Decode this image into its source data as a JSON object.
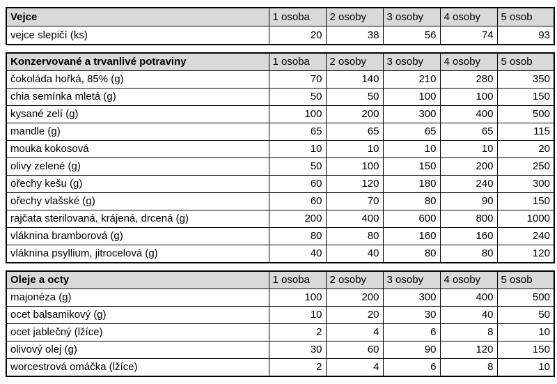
{
  "columns": [
    "1 osoba",
    "2 osoby",
    "3 osoby",
    "4 osoby",
    "5 osob"
  ],
  "colors": {
    "header_bg": "#d9d9d9",
    "border": "#000000",
    "text": "#000000",
    "page_bg": "#ffffff"
  },
  "tables": [
    {
      "title": "Vejce",
      "rows": [
        {
          "label": "vejce slepičí (ks)",
          "values": [
            20,
            38,
            56,
            74,
            93
          ]
        }
      ]
    },
    {
      "title": "Konzervované a trvanlivé potraviny",
      "rows": [
        {
          "label": "čokoláda hořká, 85% (g)",
          "values": [
            70,
            140,
            210,
            280,
            350
          ]
        },
        {
          "label": "chia semínka mletá (g)",
          "values": [
            50,
            50,
            100,
            100,
            150
          ]
        },
        {
          "label": "kysané zelí (g)",
          "values": [
            100,
            200,
            300,
            400,
            500
          ]
        },
        {
          "label": "mandle (g)",
          "values": [
            65,
            65,
            65,
            65,
            115
          ]
        },
        {
          "label": "mouka kokosová",
          "values": [
            10,
            10,
            10,
            10,
            20
          ]
        },
        {
          "label": "olivy zelené (g)",
          "values": [
            50,
            100,
            150,
            200,
            250
          ]
        },
        {
          "label": "ořechy kešu (g)",
          "values": [
            60,
            120,
            180,
            240,
            300
          ]
        },
        {
          "label": "ořechy vlašské (g)",
          "values": [
            60,
            70,
            80,
            90,
            150
          ]
        },
        {
          "label": "rajčata sterilovaná, krájená, drcená (g)",
          "values": [
            200,
            400,
            600,
            800,
            1000
          ]
        },
        {
          "label": "vláknina bramborová (g)",
          "values": [
            80,
            80,
            160,
            160,
            240
          ]
        },
        {
          "label": "vláknina psyllium, jitrocelová (g)",
          "values": [
            40,
            40,
            80,
            80,
            120
          ]
        }
      ]
    },
    {
      "title": "Oleje a octy",
      "rows": [
        {
          "label": "majonéza (g)",
          "values": [
            100,
            200,
            300,
            400,
            500
          ]
        },
        {
          "label": "ocet balsamikový (g)",
          "values": [
            10,
            20,
            30,
            40,
            50
          ]
        },
        {
          "label": "ocet jablečný (lžíce)",
          "values": [
            2,
            4,
            6,
            8,
            10
          ]
        },
        {
          "label": "olivový olej (g)",
          "values": [
            30,
            60,
            90,
            120,
            150
          ]
        },
        {
          "label": "worcestrová omáčka (lžíce)",
          "values": [
            2,
            4,
            6,
            8,
            10
          ]
        }
      ]
    }
  ]
}
